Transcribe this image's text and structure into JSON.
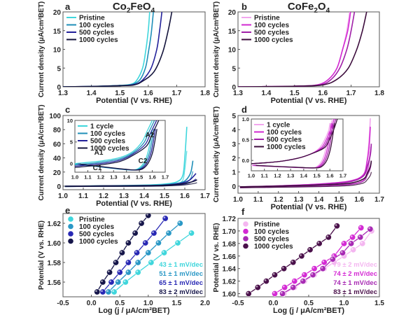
{
  "chart_data": [
    {
      "id": "a",
      "type": "line",
      "panel_label": "a",
      "title": "Co2FeO4",
      "xlabel": "Potential (V vs. RHE)",
      "ylabel": "Current density (μA/cm²BET)",
      "xlim": [
        1.3,
        1.8
      ],
      "ylim": [
        0,
        20
      ],
      "xticks": [
        "1.3",
        "1.4",
        "1.5",
        "1.6",
        "1.7",
        "1.8"
      ],
      "yticks": [
        "0",
        "5",
        "10",
        "15",
        "20"
      ],
      "legend_position": "top-left",
      "series": [
        {
          "name": "Pristine",
          "color": "#3fd6dc",
          "x": [
            1.3,
            1.4,
            1.5,
            1.54,
            1.56,
            1.58,
            1.59,
            1.6,
            1.605
          ],
          "y": [
            0,
            0.1,
            0.35,
            0.7,
            1.8,
            5,
            9,
            15,
            20
          ]
        },
        {
          "name": "100 cycles",
          "color": "#1f8fb8",
          "x": [
            1.3,
            1.4,
            1.5,
            1.54,
            1.57,
            1.59,
            1.6,
            1.61,
            1.618
          ],
          "y": [
            0,
            0.1,
            0.35,
            0.6,
            1.8,
            5,
            9,
            14,
            20
          ]
        },
        {
          "name": "500 cycles",
          "color": "#22209a",
          "x": [
            1.3,
            1.4,
            1.5,
            1.55,
            1.58,
            1.61,
            1.63,
            1.64,
            1.648
          ],
          "y": [
            0,
            0.1,
            0.3,
            0.6,
            1.8,
            5,
            10,
            15,
            20
          ]
        },
        {
          "name": "1000 cycles",
          "color": "#14143c",
          "x": [
            1.3,
            1.4,
            1.5,
            1.55,
            1.58,
            1.62,
            1.65,
            1.67,
            1.683
          ],
          "y": [
            0,
            0.1,
            0.3,
            0.5,
            1.5,
            4,
            9,
            15,
            20
          ]
        }
      ]
    },
    {
      "id": "b",
      "type": "line",
      "panel_label": "b",
      "title": "CoFe2O4",
      "xlabel": "Potential (V vs. RHE)",
      "ylabel": "Current density (μA/cm²BET)",
      "xlim": [
        1.3,
        1.8
      ],
      "ylim": [
        0,
        20
      ],
      "xticks": [
        "1.3",
        "1.4",
        "1.5",
        "1.6",
        "1.7",
        "1.8"
      ],
      "yticks": [
        "0",
        "5",
        "10",
        "15",
        "20"
      ],
      "legend_position": "top-left",
      "series": [
        {
          "name": "Pristine",
          "color": "#f2a6ee",
          "x": [
            1.3,
            1.4,
            1.5,
            1.58,
            1.62,
            1.65,
            1.67,
            1.685,
            1.695
          ],
          "y": [
            0,
            0.05,
            0.15,
            0.5,
            2,
            5,
            10,
            15,
            20
          ]
        },
        {
          "name": "100 cycles",
          "color": "#d22ad2",
          "x": [
            1.3,
            1.4,
            1.5,
            1.58,
            1.62,
            1.65,
            1.67,
            1.688,
            1.698
          ],
          "y": [
            0,
            0.05,
            0.15,
            0.5,
            2,
            5,
            10,
            15,
            20
          ]
        },
        {
          "name": "500 cycles",
          "color": "#a020a8",
          "x": [
            1.3,
            1.4,
            1.5,
            1.59,
            1.63,
            1.66,
            1.685,
            1.7,
            1.712
          ],
          "y": [
            0,
            0.05,
            0.15,
            0.5,
            2,
            5,
            10,
            15,
            20
          ]
        },
        {
          "name": "1000 cycles",
          "color": "#3c0c3c",
          "x": [
            1.3,
            1.4,
            1.5,
            1.6,
            1.65,
            1.69,
            1.72,
            1.74,
            1.755
          ],
          "y": [
            0,
            0.05,
            0.15,
            0.5,
            2,
            5,
            10,
            15,
            20
          ]
        }
      ]
    },
    {
      "id": "c",
      "type": "line",
      "panel_label": "c",
      "xlabel": "Potential (V vs. RHE)",
      "ylabel": "Current density (μA/cm²BET)",
      "xlim": [
        1.0,
        1.7
      ],
      "ylim": [
        -5,
        100
      ],
      "xticks": [
        "1.0",
        "1.1",
        "1.2",
        "1.3",
        "1.4",
        "1.5",
        "1.6",
        "1.7"
      ],
      "yticks": [
        "0",
        "20",
        "40",
        "60",
        "80",
        "100"
      ],
      "legend_position": "inset top-left",
      "series": [
        {
          "name": "1 cycle",
          "color": "#3fd6dc",
          "x": [
            1.01,
            1.2,
            1.4,
            1.5,
            1.56,
            1.59,
            1.6,
            1.61
          ],
          "y": [
            0,
            0.5,
            1.5,
            3,
            6,
            15,
            40,
            84
          ]
        },
        {
          "name": "100 cycles",
          "color": "#1f8fb8",
          "x": [
            1.01,
            1.2,
            1.4,
            1.5,
            1.58,
            1.61,
            1.63,
            1.64
          ],
          "y": [
            0,
            0.4,
            1,
            2,
            5,
            10,
            20,
            36
          ]
        },
        {
          "name": "500 cycles",
          "color": "#22209a",
          "x": [
            1.01,
            1.2,
            1.4,
            1.5,
            1.58,
            1.62,
            1.64,
            1.655
          ],
          "y": [
            0,
            0.3,
            0.8,
            1.5,
            4,
            8,
            13,
            18
          ]
        },
        {
          "name": "1000 cycles",
          "color": "#14143c",
          "x": [
            1.01,
            1.2,
            1.4,
            1.5,
            1.58,
            1.62,
            1.645,
            1.66
          ],
          "y": [
            0,
            0.3,
            0.6,
            1.2,
            3,
            5,
            7,
            9
          ]
        }
      ],
      "inset": {
        "xlim": [
          1.0,
          1.7
        ],
        "ylim": [
          -2,
          10
        ],
        "xticks": [
          "1.0",
          "1.1",
          "1.2",
          "1.3",
          "1.4",
          "1.5",
          "1.6",
          "1.7"
        ],
        "yticks": [
          "0",
          "5",
          "10"
        ],
        "annotations": [
          "A1",
          "A2",
          "C1",
          "C2"
        ]
      }
    },
    {
      "id": "d",
      "type": "line",
      "panel_label": "d",
      "xlabel": "Potential (V vs. RHE)",
      "ylabel": "Current density (μA/cm²BET)",
      "xlim": [
        1.0,
        1.7
      ],
      "ylim": [
        -0.5,
        5
      ],
      "xticks": [
        "1.0",
        "1.1",
        "1.2",
        "1.3",
        "1.4",
        "1.5",
        "1.6",
        "1.7"
      ],
      "yticks": [
        "0",
        "1",
        "2",
        "3",
        "4",
        "5"
      ],
      "legend_position": "inset top-left",
      "series": [
        {
          "name": "1 cycle",
          "color": "#f2a6ee",
          "x": [
            1.01,
            1.2,
            1.4,
            1.55,
            1.62,
            1.64,
            1.65,
            1.655
          ],
          "y": [
            -0.05,
            0.02,
            0.15,
            0.35,
            0.8,
            2,
            3.5,
            4.8
          ]
        },
        {
          "name": "100 cycles",
          "color": "#d22ad2",
          "x": [
            1.01,
            1.2,
            1.4,
            1.55,
            1.62,
            1.64,
            1.65,
            1.655
          ],
          "y": [
            -0.05,
            0.02,
            0.15,
            0.35,
            0.8,
            1.8,
            3,
            4.2
          ]
        },
        {
          "name": "500 cycles",
          "color": "#a020a8",
          "x": [
            1.01,
            1.2,
            1.4,
            1.55,
            1.62,
            1.64,
            1.655,
            1.66
          ],
          "y": [
            -0.05,
            0.02,
            0.12,
            0.3,
            0.7,
            1.4,
            2.2,
            3
          ]
        },
        {
          "name": "1000 cycles",
          "color": "#3c0c3c",
          "x": [
            1.01,
            1.2,
            1.4,
            1.55,
            1.62,
            1.64,
            1.655,
            1.66
          ],
          "y": [
            -0.05,
            0.0,
            0.08,
            0.2,
            0.5,
            0.9,
            1.4,
            1.8
          ]
        }
      ],
      "inset": {
        "xlim": [
          1.0,
          1.7
        ],
        "ylim": [
          -0.25,
          1.0
        ],
        "xticks": [
          "1.0",
          "1.1",
          "1.2",
          "1.3",
          "1.4",
          "1.5",
          "1.6",
          "1.7"
        ],
        "yticks": [
          "0.0",
          "0.5",
          "1.0"
        ]
      }
    },
    {
      "id": "e",
      "type": "scatter",
      "panel_label": "e",
      "xlabel": "Log (j / μA/cm²BET)",
      "ylabel": "Potential (V vs. RHE)",
      "xlim": [
        -0.5,
        2.0
      ],
      "ylim": [
        1.545,
        1.63
      ],
      "xticks": [
        "-0.5",
        "0.0",
        "0.5",
        "1.0",
        "1.5",
        "2.0"
      ],
      "yticks": [
        "1.56",
        "1.58",
        "1.60",
        "1.62"
      ],
      "legend_position": "top-left",
      "series": [
        {
          "name": "Pristine",
          "color": "#3fd6dc",
          "slope_label": "43 ± 1 mV/dec",
          "x": [
            0.4,
            0.6,
            0.82,
            1.05,
            1.28,
            1.52,
            1.76
          ],
          "y": [
            1.55,
            1.56,
            1.57,
            1.58,
            1.59,
            1.6,
            1.61
          ]
        },
        {
          "name": "100 cycles",
          "color": "#2a98c6",
          "slope_label": "51 ± 1 mV/dec",
          "x": [
            0.3,
            0.47,
            0.65,
            0.82,
            1.0,
            1.18,
            1.36,
            1.56
          ],
          "y": [
            1.55,
            1.56,
            1.57,
            1.58,
            1.59,
            1.6,
            1.61,
            1.62
          ]
        },
        {
          "name": "500 cycles",
          "color": "#2828b4",
          "slope_label": "65 ± 1 mV/dec",
          "x": [
            0.2,
            0.35,
            0.5,
            0.65,
            0.8,
            0.95,
            1.1,
            1.3
          ],
          "y": [
            1.55,
            1.56,
            1.57,
            1.58,
            1.59,
            1.6,
            1.61,
            1.625
          ]
        },
        {
          "name": "1000 cycles",
          "color": "#16164a",
          "slope_label": "83 ± 2 mV/dec",
          "x": [
            0.1,
            0.2,
            0.32,
            0.43,
            0.54,
            0.65,
            0.77,
            0.88,
            1.0
          ],
          "y": [
            1.55,
            1.56,
            1.57,
            1.58,
            1.59,
            1.6,
            1.61,
            1.62,
            1.628
          ]
        }
      ]
    },
    {
      "id": "f",
      "type": "scatter",
      "panel_label": "f",
      "xlabel": "Log (j / μA/cm²BET)",
      "ylabel": "Potential (V vs. RHE)",
      "xlim": [
        -0.5,
        1.5
      ],
      "ylim": [
        1.595,
        1.72
      ],
      "xticks": [
        "-0.5",
        "0.0",
        "0.5",
        "1.0",
        "1.5"
      ],
      "yticks": [
        "1.60",
        "1.62",
        "1.64",
        "1.66",
        "1.68",
        "1.70",
        "1.72"
      ],
      "legend_position": "top-left",
      "series": [
        {
          "name": "Pristine",
          "color": "#f4b6f0",
          "slope_label": "79 ± 2 mV/dec",
          "x": [
            0.15,
            0.3,
            0.44,
            0.58,
            0.72,
            0.86,
            1.0,
            1.13,
            1.26,
            1.39
          ],
          "y": [
            1.6,
            1.61,
            1.62,
            1.63,
            1.64,
            1.65,
            1.66,
            1.67,
            1.68,
            1.7
          ]
        },
        {
          "name": "100 cycles",
          "color": "#d42ad4",
          "slope_label": "74 ± 2 mV/dec",
          "x": [
            0.02,
            0.16,
            0.3,
            0.44,
            0.58,
            0.72,
            0.86,
            1.0,
            1.12,
            1.24
          ],
          "y": [
            1.6,
            1.61,
            1.62,
            1.63,
            1.64,
            1.65,
            1.66,
            1.68,
            1.69,
            1.705
          ]
        },
        {
          "name": "500 cycles",
          "color": "#a82ab4",
          "slope_label": "74 ± 1 mV/dec",
          "x": [
            0.13,
            0.28,
            0.42,
            0.56,
            0.7,
            0.84,
            0.98,
            1.1,
            1.23,
            1.37
          ],
          "y": [
            1.6,
            1.61,
            1.62,
            1.63,
            1.64,
            1.655,
            1.665,
            1.68,
            1.69,
            1.703
          ]
        },
        {
          "name": "1000 cycles",
          "color": "#4a104a",
          "slope_label": "83 ± 1 mV/dec",
          "x": [
            -0.35,
            -0.22,
            -0.1,
            0.02,
            0.15,
            0.28,
            0.4,
            0.52,
            0.65,
            0.78,
            0.9
          ],
          "y": [
            1.6,
            1.61,
            1.62,
            1.63,
            1.64,
            1.65,
            1.66,
            1.67,
            1.68,
            1.69,
            1.708
          ]
        }
      ]
    }
  ]
}
